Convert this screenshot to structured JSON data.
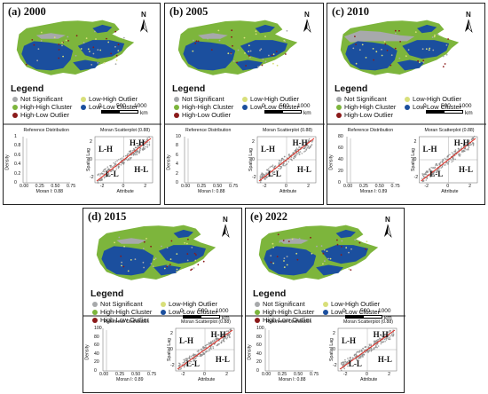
{
  "panels": [
    {
      "label": "(a) 2000",
      "moran": "Moran I: 0.88",
      "yticks": [
        "1",
        "0.8",
        "0.6",
        "0.4",
        "0.2",
        "0"
      ],
      "gray": "light"
    },
    {
      "label": "(b) 2005",
      "moran": "Moran I: 0.88",
      "yticks": [
        "10",
        "8",
        "6",
        "4",
        "2",
        "0"
      ],
      "gray": "light"
    },
    {
      "label": "(c) 2010",
      "moran": "Moran I: 0.89",
      "yticks": [
        "80",
        "60",
        "40",
        "20",
        "0"
      ],
      "gray": "heavy"
    },
    {
      "label": "(d) 2015",
      "moran": "Moran I: 0.89",
      "yticks": [
        "100",
        "80",
        "60",
        "40",
        "20",
        "0"
      ],
      "gray": "light"
    },
    {
      "label": "(e) 2022",
      "moran": "Moran I: 0.88",
      "yticks": [
        "100",
        "80",
        "60",
        "40",
        "20",
        "0"
      ],
      "gray": "light"
    }
  ],
  "north": "N",
  "legend": {
    "title": "Legend",
    "items": [
      {
        "label": "Not Significant",
        "color": "#a7a9ab"
      },
      {
        "label": "Low-High Outlier",
        "color": "#d8df7a"
      },
      {
        "label": "High-High Cluster",
        "color": "#7db53c"
      },
      {
        "label": "Low-Low Cluster",
        "color": "#1b4f9e"
      },
      {
        "label": "High-Low Outlier",
        "color": "#8b1a1a"
      }
    ]
  },
  "scale": {
    "ticks": [
      "0",
      "500",
      "1000"
    ],
    "unit": "km"
  },
  "plots": {
    "ref_title": "Reference Distribution",
    "density": "Density",
    "ref_xticks": [
      "0.00",
      "0.25",
      "0.50",
      "0.75"
    ],
    "moran_title": "Moran Scatterplot (0.88)",
    "spatial_lag": "Spatial Lag",
    "attribute": "Attribute",
    "moran_xticks": [
      "-2",
      "0",
      "2"
    ],
    "moran_yticks": [
      "2",
      "0",
      "-2"
    ],
    "quadrants": {
      "hh": "H-H",
      "lh": "L-H",
      "ll": "L-L",
      "hl": "H-L"
    }
  },
  "colors": {
    "green": "#7db53c",
    "blue": "#1b4f9e",
    "gray": "#a7a9ab",
    "red": "#8b1a1a",
    "yellow": "#d8df7a",
    "fit": "#e0281f"
  }
}
